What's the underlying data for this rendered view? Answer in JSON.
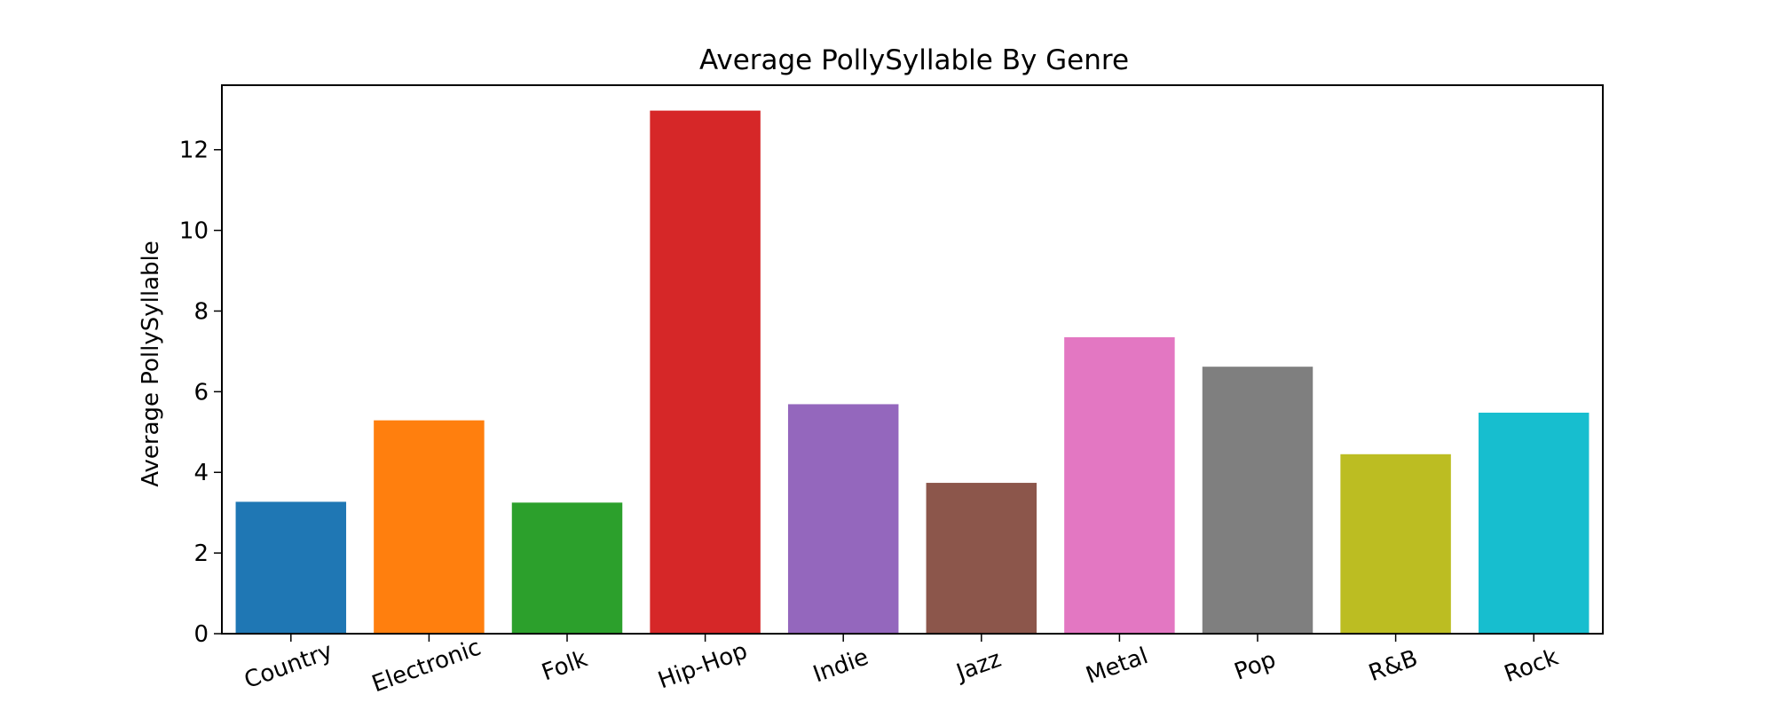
{
  "chart_data": {
    "type": "bar",
    "title": "Average PollySyllable By Genre",
    "xlabel": "",
    "ylabel": "Average PollySyllable",
    "categories": [
      "Country",
      "Electronic",
      "Folk",
      "Hip-Hop",
      "Indie",
      "Jazz",
      "Metal",
      "Pop",
      "R&B",
      "Rock"
    ],
    "values": [
      3.27,
      5.29,
      3.25,
      12.97,
      5.69,
      3.74,
      7.35,
      6.62,
      4.45,
      5.48
    ],
    "colors": [
      "#1f77b4",
      "#ff7f0e",
      "#2ca02c",
      "#d62728",
      "#9467bd",
      "#8c564b",
      "#e377c2",
      "#7f7f7f",
      "#bcbd22",
      "#17becf"
    ],
    "ylim": [
      0,
      13.6
    ],
    "yticks": [
      0,
      2,
      4,
      6,
      8,
      10,
      12
    ],
    "grid": false,
    "legend": "none"
  }
}
